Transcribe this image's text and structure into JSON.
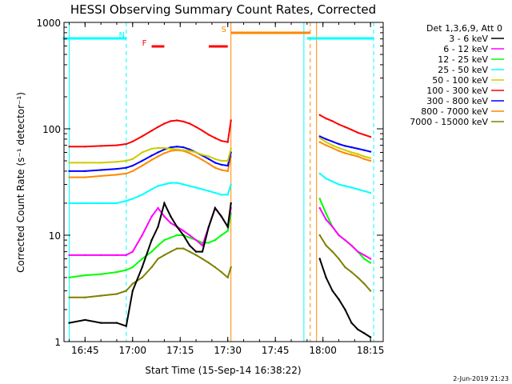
{
  "chart_data": {
    "type": "line",
    "title": "HESSI Observing Summary Count Rates, Corrected",
    "xlabel": "Start Time (15-Sep-14 16:38:22)",
    "ylabel": "Corrected Count Rate (s⁻¹ detector⁻¹)",
    "y_scale": "log",
    "ylim": [
      1,
      1000
    ],
    "xlim": [
      "16:38:22",
      "18:19:00"
    ],
    "x_tick_labels": [
      "16:45",
      "17:00",
      "17:15",
      "17:30",
      "17:45",
      "18:00",
      "18:15"
    ],
    "y_tick_labels": [
      "1",
      "10",
      "100",
      "1000"
    ],
    "legend": {
      "placement": "right",
      "header": "Det 1,3,6,9, Att 0",
      "entries": [
        {
          "label": "3 - 6 keV",
          "color": "#000000"
        },
        {
          "label": "6 - 12 keV",
          "color": "#ff00ff"
        },
        {
          "label": "12 - 25 keV",
          "color": "#00ff00"
        },
        {
          "label": "25 - 50 keV",
          "color": "#00ffff"
        },
        {
          "label": "50 - 100 keV",
          "color": "#cccc00"
        },
        {
          "label": "100 - 300 keV",
          "color": "#ff0000"
        },
        {
          "label": "300 - 800 keV",
          "color": "#0000ff"
        },
        {
          "label": "800 - 7000 keV",
          "color": "#ff8800"
        },
        {
          "label": "7000 - 15000 keV",
          "color": "#808000"
        }
      ]
    },
    "flags": [
      {
        "label": "N",
        "color": "#00ffff",
        "segments": [
          [
            "16:38",
            "16:58"
          ],
          [
            "17:55",
            "18:16"
          ]
        ]
      },
      {
        "label": "F",
        "color": "#ff0000",
        "segments": [
          [
            "17:06",
            "17:10"
          ],
          [
            "17:24",
            "17:30"
          ]
        ]
      },
      {
        "label": "S",
        "color": "#ff8800",
        "segments": [
          [
            "17:31",
            "17:56"
          ]
        ]
      }
    ],
    "vertical_markers": [
      {
        "time": "16:40",
        "color": "#00ffff",
        "style": "solid"
      },
      {
        "time": "16:58",
        "color": "#00ffff",
        "style": "dashed"
      },
      {
        "time": "17:31",
        "color": "#ff8800",
        "style": "solid"
      },
      {
        "time": "17:54",
        "color": "#00ffff",
        "style": "solid"
      },
      {
        "time": "17:56",
        "color": "#ff8800",
        "style": "dashed"
      },
      {
        "time": "17:58",
        "color": "#ff8800",
        "style": "solid"
      },
      {
        "time": "18:16",
        "color": "#00ffff",
        "style": "dashed"
      }
    ],
    "series": [
      {
        "name": "3 - 6 keV",
        "color": "#000000",
        "segments": [
          {
            "x": [
              "16:40",
              "16:45",
              "16:50",
              "16:55",
              "16:58",
              "17:00",
              "17:03",
              "17:06",
              "17:08",
              "17:10",
              "17:12",
              "17:14",
              "17:16",
              "17:18",
              "17:20",
              "17:22",
              "17:24",
              "17:26",
              "17:28",
              "17:30",
              "17:31"
            ],
            "y": [
              1.5,
              1.6,
              1.5,
              1.5,
              1.4,
              3,
              5,
              9,
              12,
              20,
              15,
              12,
              10,
              8,
              7,
              7,
              12,
              18,
              15,
              12,
              20
            ]
          },
          {
            "x": [
              "17:59",
              "18:01",
              "18:03",
              "18:05",
              "18:07",
              "18:09",
              "18:11",
              "18:13",
              "18:15"
            ],
            "y": [
              6,
              4,
              3,
              2.5,
              2,
              1.5,
              1.3,
              1.2,
              1.1
            ]
          }
        ]
      },
      {
        "name": "6 - 12 keV",
        "color": "#ff00ff",
        "segments": [
          {
            "x": [
              "16:40",
              "16:45",
              "16:50",
              "16:55",
              "16:58",
              "17:00",
              "17:03",
              "17:06",
              "17:08",
              "17:10",
              "17:12",
              "17:14",
              "17:16",
              "17:18",
              "17:20",
              "17:22",
              "17:24",
              "17:26",
              "17:28",
              "17:30",
              "17:31"
            ],
            "y": [
              6.5,
              6.5,
              6.5,
              6.5,
              6.5,
              7,
              10,
              15,
              18,
              15,
              13,
              12,
              11,
              10,
              9,
              8,
              12,
              18,
              15,
              12,
              18
            ]
          },
          {
            "x": [
              "17:59",
              "18:01",
              "18:03",
              "18:05",
              "18:07",
              "18:09",
              "18:11",
              "18:13",
              "18:15"
            ],
            "y": [
              18,
              14,
              12,
              10,
              9,
              8,
              7,
              6.5,
              6
            ]
          }
        ]
      },
      {
        "name": "12 - 25 keV",
        "color": "#00ff00",
        "segments": [
          {
            "x": [
              "16:40",
              "16:45",
              "16:50",
              "16:55",
              "16:58",
              "17:00",
              "17:03",
              "17:06",
              "17:08",
              "17:10",
              "17:12",
              "17:14",
              "17:16",
              "17:18",
              "17:20",
              "17:22",
              "17:24",
              "17:26",
              "17:28",
              "17:30",
              "17:31"
            ],
            "y": [
              4,
              4.2,
              4.3,
              4.5,
              4.7,
              5,
              6,
              7,
              8,
              9,
              9.5,
              10,
              10,
              9.5,
              9,
              8.5,
              8.5,
              9,
              10,
              11,
              16
            ]
          },
          {
            "x": [
              "17:59",
              "18:01",
              "18:03",
              "18:05",
              "18:07",
              "18:09",
              "18:11",
              "18:13",
              "18:15"
            ],
            "y": [
              22,
              16,
              12,
              10,
              9,
              8,
              7,
              6,
              5.5
            ]
          }
        ]
      },
      {
        "name": "25 - 50 keV",
        "color": "#00ffff",
        "segments": [
          {
            "x": [
              "16:40",
              "16:45",
              "16:50",
              "16:55",
              "16:58",
              "17:00",
              "17:03",
              "17:06",
              "17:08",
              "17:10",
              "17:12",
              "17:14",
              "17:16",
              "17:18",
              "17:20",
              "17:22",
              "17:24",
              "17:26",
              "17:28",
              "17:30",
              "17:31"
            ],
            "y": [
              20,
              20,
              20,
              20,
              21,
              22,
              24,
              27,
              29,
              30,
              31,
              31,
              30,
              29,
              28,
              27,
              26,
              25,
              24,
              24,
              30
            ]
          },
          {
            "x": [
              "17:59",
              "18:01",
              "18:03",
              "18:05",
              "18:07",
              "18:09",
              "18:11",
              "18:13",
              "18:15"
            ],
            "y": [
              38,
              34,
              32,
              30,
              29,
              28,
              27,
              26,
              25
            ]
          }
        ]
      },
      {
        "name": "50 - 100 keV",
        "color": "#cccc00",
        "segments": [
          {
            "x": [
              "16:40",
              "16:45",
              "16:50",
              "16:55",
              "16:58",
              "17:00",
              "17:03",
              "17:06",
              "17:08",
              "17:10",
              "17:12",
              "17:14",
              "17:16",
              "17:18",
              "17:20",
              "17:22",
              "17:24",
              "17:26",
              "17:28",
              "17:30",
              "17:31"
            ],
            "y": [
              48,
              48,
              48,
              49,
              50,
              52,
              60,
              65,
              66,
              66,
              65,
              64,
              63,
              62,
              60,
              57,
              55,
              52,
              50,
              50,
              65
            ]
          },
          {
            "x": [
              "17:59",
              "18:01",
              "18:03",
              "18:05",
              "18:07",
              "18:09",
              "18:11",
              "18:13",
              "18:15"
            ],
            "y": [
              82,
              75,
              70,
              66,
              63,
              60,
              58,
              55,
              53
            ]
          }
        ]
      },
      {
        "name": "100 - 300 keV",
        "color": "#ff0000",
        "segments": [
          {
            "x": [
              "16:40",
              "16:45",
              "16:50",
              "16:55",
              "16:58",
              "17:00",
              "17:03",
              "17:06",
              "17:08",
              "17:10",
              "17:12",
              "17:14",
              "17:16",
              "17:18",
              "17:20",
              "17:22",
              "17:24",
              "17:26",
              "17:28",
              "17:30",
              "17:31"
            ],
            "y": [
              68,
              68,
              69,
              70,
              72,
              76,
              85,
              96,
              104,
              112,
              118,
              120,
              117,
              112,
              104,
              96,
              88,
              82,
              77,
              75,
              120
            ]
          },
          {
            "x": [
              "17:59",
              "18:01",
              "18:03",
              "18:05",
              "18:07",
              "18:09",
              "18:11",
              "18:13",
              "18:15"
            ],
            "y": [
              135,
              125,
              118,
              110,
              104,
              98,
              92,
              88,
              84
            ]
          }
        ]
      },
      {
        "name": "300 - 800 keV",
        "color": "#0000ff",
        "segments": [
          {
            "x": [
              "16:40",
              "16:45",
              "16:50",
              "16:55",
              "16:58",
              "17:00",
              "17:03",
              "17:06",
              "17:08",
              "17:10",
              "17:12",
              "17:14",
              "17:16",
              "17:18",
              "17:20",
              "17:22",
              "17:24",
              "17:26",
              "17:28",
              "17:30",
              "17:31"
            ],
            "y": [
              40,
              40,
              41,
              42,
              43,
              45,
              50,
              56,
              60,
              64,
              67,
              68,
              67,
              64,
              60,
              56,
              52,
              48,
              46,
              45,
              60
            ]
          },
          {
            "x": [
              "17:59",
              "18:01",
              "18:03",
              "18:05",
              "18:07",
              "18:09",
              "18:11",
              "18:13",
              "18:15"
            ],
            "y": [
              85,
              80,
              76,
              72,
              69,
              67,
              65,
              63,
              61
            ]
          }
        ]
      },
      {
        "name": "800 - 7000 keV",
        "color": "#ff8800",
        "segments": [
          {
            "x": [
              "16:40",
              "16:45",
              "16:50",
              "16:55",
              "16:58",
              "17:00",
              "17:03",
              "17:06",
              "17:08",
              "17:10",
              "17:12",
              "17:14",
              "17:16",
              "17:18",
              "17:20",
              "17:22",
              "17:24",
              "17:26",
              "17:28",
              "17:30",
              "17:31"
            ],
            "y": [
              35,
              35,
              36,
              37,
              38,
              40,
              45,
              51,
              55,
              59,
              62,
              63,
              62,
              59,
              55,
              51,
              47,
              43,
              41,
              40,
              55
            ]
          },
          {
            "x": [
              "17:59",
              "18:01",
              "18:03",
              "18:05",
              "18:07",
              "18:09",
              "18:11",
              "18:13",
              "18:15"
            ],
            "y": [
              75,
              70,
              66,
              62,
              59,
              57,
              55,
              52,
              50
            ]
          }
        ]
      },
      {
        "name": "7000 - 15000 keV",
        "color": "#808000",
        "segments": [
          {
            "x": [
              "16:40",
              "16:45",
              "16:50",
              "16:55",
              "16:58",
              "17:00",
              "17:03",
              "17:06",
              "17:08",
              "17:10",
              "17:12",
              "17:14",
              "17:16",
              "17:18",
              "17:20",
              "17:22",
              "17:24",
              "17:26",
              "17:28",
              "17:30",
              "17:31"
            ],
            "y": [
              2.6,
              2.6,
              2.7,
              2.8,
              3,
              3.5,
              4,
              5,
              6,
              6.5,
              7,
              7.5,
              7.5,
              7,
              6.5,
              6,
              5.5,
              5,
              4.5,
              4,
              5
            ]
          },
          {
            "x": [
              "17:59",
              "18:01",
              "18:03",
              "18:05",
              "18:07",
              "18:09",
              "18:11",
              "18:13",
              "18:15"
            ],
            "y": [
              10,
              8,
              7,
              6,
              5,
              4.5,
              4,
              3.5,
              3
            ]
          }
        ]
      }
    ]
  },
  "footer_date": "2-Jun-2019 21:23"
}
